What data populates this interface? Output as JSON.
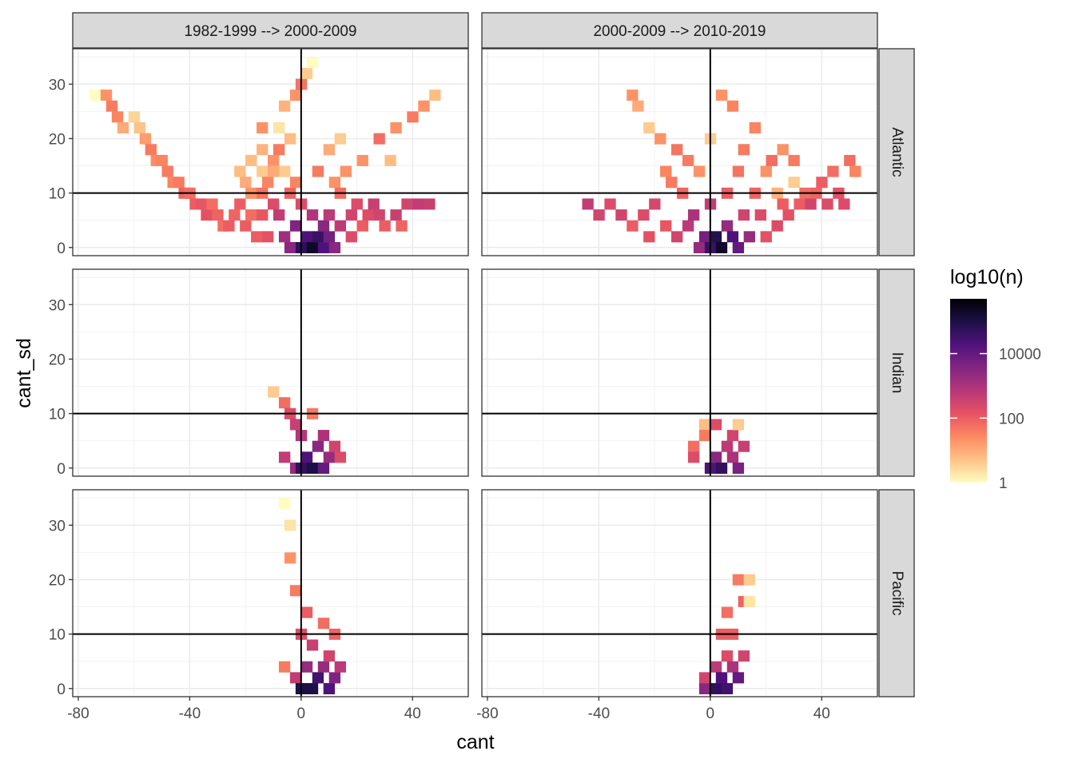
{
  "chart_data": {
    "type": "heatmap",
    "xlabel": "cant",
    "ylabel": "cant_sd",
    "xlim": [
      -82,
      60
    ],
    "ylim": [
      -1.5,
      36.5
    ],
    "x_ticks": [
      -80,
      -40,
      0,
      40
    ],
    "x_tick_labels": [
      "-80",
      "-40",
      "0",
      "40"
    ],
    "y_ticks": [
      0,
      10,
      20,
      30
    ],
    "y_tick_labels": [
      "0",
      "10",
      "20",
      "30"
    ],
    "reference_lines": {
      "x": 0,
      "y": 10
    },
    "grid": true,
    "bin_size": {
      "x": 4,
      "y": 2
    },
    "facet_columns": [
      "1982-1999 --> 2000-2009",
      "2000-2009 --> 2010-2019"
    ],
    "facet_rows": [
      "Atlantic",
      "Indian",
      "Pacific"
    ],
    "legend": {
      "title": "log10(n)",
      "position": "right",
      "scale": "log10",
      "breaks": [
        1,
        100,
        10000
      ],
      "break_labels": [
        "1",
        "100",
        "10000"
      ],
      "range": [
        1,
        500000
      ],
      "colors": [
        "#fcfdbf",
        "#fec287",
        "#fc8961",
        "#e75263",
        "#b73779",
        "#822681",
        "#51127c",
        "#1d1147",
        "#000004"
      ]
    },
    "panels": [
      {
        "column": "1982-1999 --> 2000-2009",
        "row": "Atlantic",
        "cells": [
          [
            -74,
            28,
            1
          ],
          [
            -70,
            28,
            20
          ],
          [
            -68,
            26,
            40
          ],
          [
            -66,
            24,
            30
          ],
          [
            -64,
            22,
            10
          ],
          [
            -60,
            24,
            3
          ],
          [
            -58,
            22,
            5
          ],
          [
            -56,
            20,
            15
          ],
          [
            -54,
            18,
            40
          ],
          [
            -52,
            16,
            25
          ],
          [
            -50,
            16,
            30
          ],
          [
            -48,
            14,
            40
          ],
          [
            -46,
            12,
            30
          ],
          [
            -44,
            12,
            40
          ],
          [
            -42,
            10,
            80
          ],
          [
            -40,
            10,
            60
          ],
          [
            -38,
            8,
            100
          ],
          [
            -36,
            8,
            120
          ],
          [
            -34,
            6,
            150
          ],
          [
            -32,
            8,
            60
          ],
          [
            -30,
            6,
            80
          ],
          [
            -28,
            4,
            60
          ],
          [
            -26,
            4,
            100
          ],
          [
            -24,
            6,
            80
          ],
          [
            -22,
            14,
            6
          ],
          [
            -22,
            8,
            100
          ],
          [
            -20,
            12,
            10
          ],
          [
            -20,
            4,
            100
          ],
          [
            -18,
            16,
            6
          ],
          [
            -18,
            10,
            20
          ],
          [
            -18,
            6,
            60
          ],
          [
            -16,
            2,
            100
          ],
          [
            -14,
            22,
            20
          ],
          [
            -14,
            18,
            8
          ],
          [
            -14,
            14,
            4
          ],
          [
            -14,
            10,
            50
          ],
          [
            -14,
            6,
            120
          ],
          [
            -12,
            2,
            150
          ],
          [
            -12,
            12,
            30
          ],
          [
            -10,
            16,
            20
          ],
          [
            -10,
            14,
            10
          ],
          [
            -10,
            8,
            200
          ],
          [
            -8,
            22,
            2
          ],
          [
            -8,
            18,
            40
          ],
          [
            -8,
            6,
            500
          ],
          [
            -6,
            26,
            8
          ],
          [
            -6,
            14,
            4
          ],
          [
            -6,
            2,
            1500
          ],
          [
            -4,
            0,
            3000
          ],
          [
            -4,
            10,
            80
          ],
          [
            -4,
            20,
            6
          ],
          [
            -2,
            28,
            20
          ],
          [
            -2,
            12,
            30
          ],
          [
            -2,
            4,
            4000
          ],
          [
            0,
            30,
            50
          ],
          [
            0,
            0,
            60000
          ],
          [
            0,
            8,
            200
          ],
          [
            2,
            32,
            4
          ],
          [
            2,
            2,
            20000
          ],
          [
            4,
            34,
            1
          ],
          [
            4,
            0,
            200000
          ],
          [
            4,
            6,
            800
          ],
          [
            6,
            14,
            40
          ],
          [
            6,
            2,
            40000
          ],
          [
            8,
            0,
            20000
          ],
          [
            8,
            4,
            3000
          ],
          [
            10,
            18,
            10
          ],
          [
            10,
            6,
            600
          ],
          [
            10,
            2,
            6000
          ],
          [
            12,
            0,
            3000
          ],
          [
            12,
            12,
            20
          ],
          [
            14,
            20,
            4
          ],
          [
            14,
            4,
            600
          ],
          [
            14,
            10,
            60
          ],
          [
            16,
            14,
            20
          ],
          [
            18,
            2,
            200
          ],
          [
            18,
            6,
            300
          ],
          [
            20,
            8,
            200
          ],
          [
            22,
            16,
            20
          ],
          [
            22,
            4,
            100
          ],
          [
            24,
            6,
            200
          ],
          [
            26,
            8,
            400
          ],
          [
            28,
            20,
            60
          ],
          [
            28,
            6,
            300
          ],
          [
            30,
            4,
            100
          ],
          [
            32,
            16,
            6
          ],
          [
            34,
            22,
            20
          ],
          [
            34,
            6,
            400
          ],
          [
            36,
            4,
            80
          ],
          [
            38,
            8,
            300
          ],
          [
            40,
            24,
            40
          ],
          [
            42,
            8,
            500
          ],
          [
            44,
            26,
            20
          ],
          [
            46,
            8,
            400
          ],
          [
            48,
            28,
            6
          ]
        ]
      },
      {
        "column": "2000-2009 --> 2010-2019",
        "row": "Atlantic",
        "cells": [
          [
            -44,
            8,
            500
          ],
          [
            -40,
            6,
            300
          ],
          [
            -36,
            8,
            200
          ],
          [
            -32,
            6,
            300
          ],
          [
            -28,
            28,
            20
          ],
          [
            -28,
            4,
            100
          ],
          [
            -26,
            26,
            10
          ],
          [
            -24,
            6,
            200
          ],
          [
            -22,
            22,
            4
          ],
          [
            -22,
            2,
            150
          ],
          [
            -20,
            8,
            250
          ],
          [
            -18,
            20,
            20
          ],
          [
            -16,
            14,
            30
          ],
          [
            -16,
            4,
            120
          ],
          [
            -14,
            12,
            40
          ],
          [
            -12,
            18,
            50
          ],
          [
            -12,
            2,
            300
          ],
          [
            -10,
            10,
            80
          ],
          [
            -8,
            16,
            40
          ],
          [
            -8,
            4,
            600
          ],
          [
            -6,
            6,
            1000
          ],
          [
            -4,
            14,
            20
          ],
          [
            -4,
            0,
            2000
          ],
          [
            -2,
            2,
            6000
          ],
          [
            0,
            8,
            500
          ],
          [
            0,
            20,
            4
          ],
          [
            0,
            0,
            40000
          ],
          [
            2,
            2,
            80000
          ],
          [
            4,
            28,
            20
          ],
          [
            4,
            0,
            200000
          ],
          [
            6,
            10,
            100
          ],
          [
            6,
            4,
            2000
          ],
          [
            8,
            26,
            30
          ],
          [
            8,
            2,
            20000
          ],
          [
            10,
            0,
            10000
          ],
          [
            10,
            14,
            50
          ],
          [
            12,
            18,
            40
          ],
          [
            12,
            6,
            300
          ],
          [
            14,
            2,
            2000
          ],
          [
            16,
            22,
            30
          ],
          [
            16,
            10,
            80
          ],
          [
            18,
            6,
            200
          ],
          [
            20,
            14,
            20
          ],
          [
            20,
            2,
            150
          ],
          [
            22,
            16,
            60
          ],
          [
            24,
            10,
            8
          ],
          [
            24,
            4,
            200
          ],
          [
            26,
            18,
            20
          ],
          [
            26,
            8,
            100
          ],
          [
            28,
            6,
            150
          ],
          [
            30,
            12,
            4
          ],
          [
            30,
            16,
            40
          ],
          [
            32,
            8,
            100
          ],
          [
            34,
            10,
            60
          ],
          [
            36,
            8,
            300
          ],
          [
            38,
            10,
            80
          ],
          [
            40,
            12,
            100
          ],
          [
            42,
            8,
            200
          ],
          [
            44,
            14,
            60
          ],
          [
            46,
            10,
            150
          ],
          [
            48,
            8,
            200
          ],
          [
            50,
            16,
            60
          ],
          [
            52,
            14,
            30
          ]
        ]
      },
      {
        "column": "1982-1999 --> 2000-2009",
        "row": "Indian",
        "cells": [
          [
            -10,
            14,
            4
          ],
          [
            -6,
            12,
            60
          ],
          [
            -6,
            2,
            500
          ],
          [
            -4,
            10,
            200
          ],
          [
            -2,
            8,
            400
          ],
          [
            -2,
            0,
            2000
          ],
          [
            0,
            6,
            800
          ],
          [
            0,
            0,
            50000
          ],
          [
            2,
            2,
            20000
          ],
          [
            4,
            0,
            100000
          ],
          [
            4,
            10,
            40
          ],
          [
            6,
            4,
            3000
          ],
          [
            8,
            6,
            1000
          ],
          [
            8,
            0,
            10000
          ],
          [
            10,
            2,
            2000
          ],
          [
            12,
            4,
            300
          ],
          [
            14,
            2,
            200
          ]
        ]
      },
      {
        "column": "2000-2009 --> 2010-2019",
        "row": "Indian",
        "cells": [
          [
            -6,
            4,
            60
          ],
          [
            -6,
            2,
            200
          ],
          [
            -2,
            8,
            6
          ],
          [
            -2,
            6,
            40
          ],
          [
            0,
            0,
            20000
          ],
          [
            2,
            2,
            3000
          ],
          [
            2,
            8,
            200
          ],
          [
            4,
            0,
            50000
          ],
          [
            6,
            4,
            600
          ],
          [
            8,
            2,
            1000
          ],
          [
            8,
            6,
            300
          ],
          [
            10,
            0,
            5000
          ],
          [
            10,
            8,
            4
          ],
          [
            12,
            4,
            400
          ]
        ]
      },
      {
        "column": "1982-1999 --> 2000-2009",
        "row": "Pacific",
        "cells": [
          [
            -6,
            34,
            1
          ],
          [
            -6,
            4,
            40
          ],
          [
            -4,
            30,
            2
          ],
          [
            -4,
            24,
            20
          ],
          [
            -2,
            18,
            40
          ],
          [
            -2,
            2,
            500
          ],
          [
            0,
            10,
            200
          ],
          [
            0,
            0,
            100000
          ],
          [
            2,
            14,
            100
          ],
          [
            2,
            4,
            2000
          ],
          [
            4,
            0,
            100000
          ],
          [
            4,
            8,
            400
          ],
          [
            6,
            2,
            30000
          ],
          [
            8,
            12,
            60
          ],
          [
            8,
            4,
            2000
          ],
          [
            10,
            0,
            20000
          ],
          [
            10,
            6,
            300
          ],
          [
            12,
            10,
            80
          ],
          [
            12,
            2,
            4000
          ],
          [
            14,
            4,
            600
          ]
        ]
      },
      {
        "column": "2000-2009 --> 2010-2019",
        "row": "Pacific",
        "cells": [
          [
            -2,
            0,
            3000
          ],
          [
            -2,
            2,
            300
          ],
          [
            2,
            0,
            50000
          ],
          [
            2,
            4,
            600
          ],
          [
            4,
            2,
            20000
          ],
          [
            4,
            10,
            100
          ],
          [
            6,
            0,
            30000
          ],
          [
            6,
            6,
            200
          ],
          [
            6,
            14,
            60
          ],
          [
            8,
            4,
            1000
          ],
          [
            8,
            10,
            100
          ],
          [
            10,
            20,
            40
          ],
          [
            10,
            2,
            10000
          ],
          [
            12,
            6,
            300
          ],
          [
            12,
            16,
            80
          ],
          [
            14,
            20,
            4
          ],
          [
            14,
            16,
            2
          ]
        ]
      }
    ]
  }
}
